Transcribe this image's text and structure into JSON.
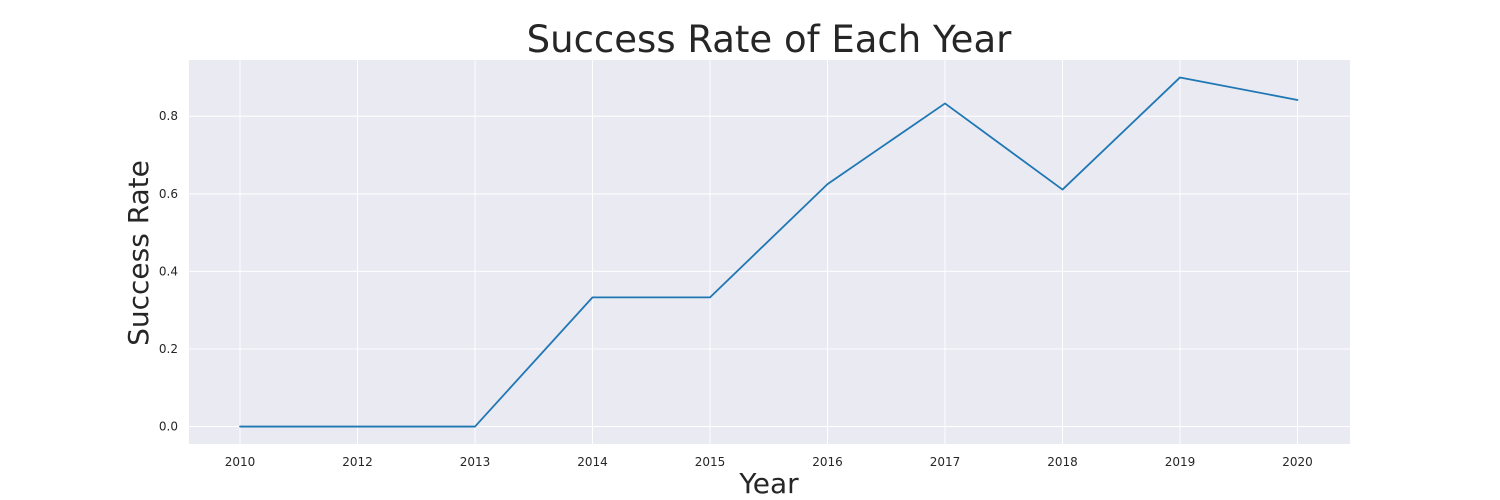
{
  "chart_data": {
    "type": "line",
    "title": "Success Rate of Each Year",
    "xlabel": "Year",
    "ylabel": "Success Rate",
    "x_tick_labels": [
      "2010",
      "2012",
      "2013",
      "2014",
      "2015",
      "2016",
      "2017",
      "2018",
      "2019",
      "2020"
    ],
    "y_ticks": [
      0.0,
      0.2,
      0.4,
      0.6,
      0.8
    ],
    "y_tick_labels": [
      "0.0",
      "0.2",
      "0.4",
      "0.6",
      "0.8"
    ],
    "ylim": [
      -0.045,
      0.945
    ],
    "grid": true,
    "series": [
      {
        "categories": [
          "2010",
          "2012",
          "2013",
          "2014",
          "2015",
          "2016",
          "2017",
          "2018",
          "2019",
          "2020"
        ],
        "values": [
          0.0,
          0.0,
          0.0,
          0.333,
          0.333,
          0.625,
          0.833,
          0.611,
          0.9,
          0.842
        ]
      }
    ],
    "colors": {
      "line": "#1f77b4",
      "plot_background": "#eaeaf2",
      "grid": "#ffffff",
      "text": "#262626"
    }
  }
}
